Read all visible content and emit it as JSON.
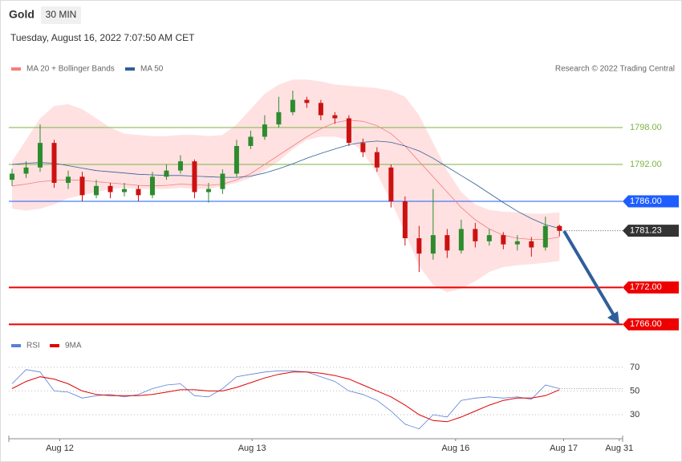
{
  "header": {
    "symbol": "Gold",
    "interval": "30 MIN",
    "timestamp": "Tuesday, August 16, 2022 7:07:50 AM CET",
    "credit": "Research © 2022 Trading Central"
  },
  "chart_data": [
    {
      "type": "candlestick",
      "legend": [
        {
          "name": "MA 20 + Bollinger Bands",
          "color": "#f08080"
        },
        {
          "name": "MA 50",
          "color": "#2f5f9a"
        }
      ],
      "xlim": [
        -0.23,
        43.5
      ],
      "xticks": [
        {
          "value": 3.4,
          "label": "Aug 12"
        },
        {
          "value": 17.1,
          "label": "Aug 13"
        },
        {
          "value": 31.6,
          "label": "Aug 16"
        },
        {
          "value": 39.3,
          "label": "Aug 17"
        },
        {
          "value": 43.26,
          "label": "Aug 31"
        }
      ],
      "ylim": [
        1765,
        1807
      ],
      "levels": [
        {
          "value": 1798,
          "label": "1798.00",
          "color": "#7cb342"
        },
        {
          "value": 1792,
          "label": "1792.00",
          "color": "#7cb342"
        },
        {
          "value": 1786,
          "label": "1786.00",
          "color": "#1e5eff"
        },
        {
          "value": 1772,
          "label": "1772.00",
          "color": "#ee0000"
        },
        {
          "value": 1766,
          "label": "1766.00",
          "color": "#ee0000"
        }
      ],
      "current_price": 1781.23,
      "up_color": "#2e8b2e",
      "down_color": "#cc1111",
      "open": [
        1789.5,
        1790.5,
        1791.5,
        1795.5,
        1789.0,
        1790.0,
        1787.0,
        1788.5,
        1787.5,
        1788.0,
        1787.0,
        1790.0,
        1791.0,
        1792.5,
        1787.5,
        1788.0,
        1790.5,
        1795.0,
        1796.5,
        1798.5,
        1800.5,
        1802.5,
        1802.0,
        1800.0,
        1799.5,
        1795.5,
        1794.0,
        1791.5,
        1786.0,
        1780.0,
        1777.5,
        1780.5,
        1778.0,
        1781.5,
        1779.5,
        1780.5,
        1779.0,
        1779.5,
        1778.5,
        1782.0
      ],
      "high": [
        1791.3,
        1792.5,
        1798.5,
        1796.0,
        1791.0,
        1790.8,
        1789.5,
        1789.0,
        1789.0,
        1788.6,
        1790.8,
        1792.0,
        1793.5,
        1792.8,
        1789.0,
        1791.2,
        1796.0,
        1797.5,
        1800.0,
        1803.0,
        1804.0,
        1803.0,
        1802.5,
        1800.5,
        1800.0,
        1796.2,
        1794.8,
        1792.0,
        1786.8,
        1782.0,
        1788.0,
        1781.5,
        1783.0,
        1782.5,
        1781.5,
        1781.0,
        1780.5,
        1780.2,
        1783.5,
        1782.2
      ],
      "low": [
        1788.5,
        1789.8,
        1790.8,
        1788.2,
        1788.0,
        1786.0,
        1786.5,
        1786.5,
        1786.8,
        1786.0,
        1786.5,
        1789.5,
        1790.5,
        1786.5,
        1785.8,
        1787.2,
        1790.0,
        1794.5,
        1796.0,
        1798.0,
        1800.0,
        1801.2,
        1799.2,
        1798.6,
        1795.0,
        1793.2,
        1790.8,
        1785.0,
        1778.8,
        1774.5,
        1776.5,
        1776.8,
        1777.5,
        1778.5,
        1778.8,
        1778.2,
        1778.0,
        1777.0,
        1778.0,
        1780.3
      ],
      "close": [
        1790.5,
        1791.5,
        1795.5,
        1789.0,
        1790.0,
        1787.0,
        1788.5,
        1787.5,
        1788.0,
        1787.0,
        1790.0,
        1791.0,
        1792.5,
        1787.5,
        1788.0,
        1790.5,
        1795.0,
        1796.5,
        1798.5,
        1800.5,
        1802.5,
        1802.0,
        1800.0,
        1799.5,
        1795.5,
        1794.0,
        1791.5,
        1786.0,
        1780.0,
        1777.5,
        1780.5,
        1778.0,
        1781.5,
        1779.5,
        1780.5,
        1779.0,
        1779.5,
        1778.5,
        1782.0,
        1781.2
      ],
      "ma20": [
        1788.5,
        1788.8,
        1789.2,
        1789.4,
        1789.5,
        1789.4,
        1789.2,
        1789.0,
        1788.8,
        1788.6,
        1788.5,
        1788.6,
        1788.8,
        1788.7,
        1788.6,
        1788.8,
        1789.5,
        1790.5,
        1792.0,
        1793.5,
        1795.0,
        1796.5,
        1797.8,
        1798.8,
        1799.2,
        1799.0,
        1798.3,
        1797.0,
        1795.0,
        1792.5,
        1790.0,
        1787.5,
        1785.0,
        1783.0,
        1781.5,
        1780.5,
        1780.0,
        1779.8,
        1779.8,
        1780.2
      ],
      "ma50": [
        1792.0,
        1792.2,
        1792.3,
        1792.2,
        1791.8,
        1791.4,
        1791.0,
        1790.8,
        1790.6,
        1790.4,
        1790.3,
        1790.2,
        1790.2,
        1790.1,
        1790.0,
        1789.9,
        1789.9,
        1790.1,
        1790.6,
        1791.3,
        1792.1,
        1793.0,
        1793.8,
        1794.5,
        1795.2,
        1795.6,
        1795.8,
        1795.6,
        1795.0,
        1794.2,
        1793.0,
        1791.6,
        1790.2,
        1788.8,
        1787.3,
        1785.8,
        1784.4,
        1783.2,
        1782.2,
        1781.6
      ],
      "bb_upper": [
        1792.5,
        1796.0,
        1799.5,
        1801.5,
        1801.8,
        1801.0,
        1799.5,
        1798.0,
        1797.0,
        1796.8,
        1796.6,
        1796.6,
        1796.8,
        1796.8,
        1796.6,
        1796.8,
        1798.5,
        1801.0,
        1803.5,
        1805.0,
        1805.8,
        1805.8,
        1805.5,
        1805.0,
        1804.8,
        1804.6,
        1804.4,
        1804.0,
        1803.0,
        1800.0,
        1795.5,
        1791.0,
        1787.5,
        1785.5,
        1784.6,
        1784.3,
        1784.2,
        1784.0,
        1784.0,
        1784.2
      ],
      "bb_lower": [
        1784.8,
        1784.5,
        1784.8,
        1785.5,
        1786.5,
        1787.0,
        1787.5,
        1788.0,
        1788.2,
        1788.0,
        1788.0,
        1788.0,
        1788.2,
        1788.0,
        1788.0,
        1788.5,
        1789.0,
        1789.8,
        1791.0,
        1792.5,
        1794.5,
        1796.0,
        1796.5,
        1796.5,
        1796.0,
        1794.0,
        1790.5,
        1786.0,
        1781.0,
        1775.5,
        1772.4,
        1771.2,
        1771.8,
        1773.0,
        1774.5,
        1775.3,
        1775.6,
        1775.8,
        1776.0,
        1776.3
      ]
    },
    {
      "type": "line",
      "ylim": [
        10,
        76
      ],
      "yticks": [
        70,
        50,
        30
      ],
      "series": [
        {
          "name": "RSI",
          "color": "#5b7fd6",
          "values": [
            56,
            68,
            66,
            50,
            49,
            44,
            46,
            47,
            45,
            47,
            52,
            55,
            56,
            46,
            45,
            52,
            62,
            64,
            66,
            67,
            67,
            66,
            62,
            58,
            50,
            47,
            42,
            33,
            22,
            18,
            30,
            28,
            42,
            44,
            45,
            44,
            45,
            43,
            55,
            52
          ]
        },
        {
          "name": "9MA",
          "color": "#e00000",
          "values": [
            52,
            58,
            62,
            60,
            56,
            50,
            47,
            46,
            46,
            46,
            47,
            49,
            51,
            51,
            50,
            50,
            53,
            57,
            61,
            64,
            66,
            66,
            65,
            63,
            60,
            55,
            50,
            45,
            38,
            30,
            25,
            24,
            28,
            33,
            38,
            42,
            44,
            44,
            46,
            51
          ]
        }
      ]
    }
  ]
}
